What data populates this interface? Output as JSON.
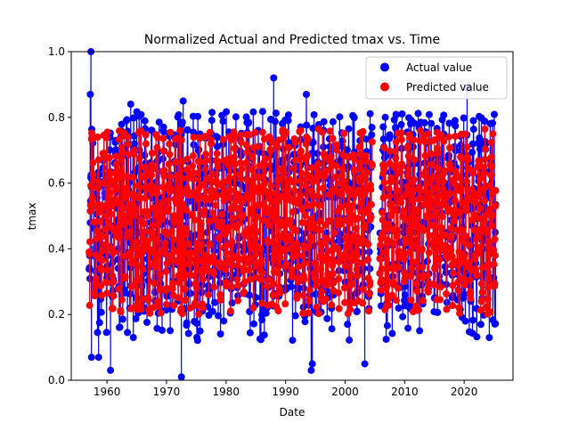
{
  "chart_data": {
    "type": "scatter",
    "title": "Normalized Actual and Predicted tmax vs. Time",
    "xlabel": "Date",
    "ylabel": "tmax",
    "xlim": [
      1954.0,
      2028.2
    ],
    "ylim": [
      0.0,
      1.0
    ],
    "x_ticks": [
      1960,
      1970,
      1980,
      1990,
      2000,
      2010,
      2020
    ],
    "x_tick_labels": [
      "1960",
      "1970",
      "1980",
      "1990",
      "2000",
      "2010",
      "2020"
    ],
    "y_ticks": [
      0.0,
      0.2,
      0.4,
      0.6,
      0.8,
      1.0
    ],
    "y_tick_labels": [
      "0.0",
      "0.2",
      "0.4",
      "0.6",
      "0.8",
      "1.0"
    ],
    "grid": false,
    "legend_position": "top-right",
    "series": [
      {
        "name": "Actual value",
        "color": "#0000ff",
        "marker": "circle",
        "line": true,
        "x_range": [
          1957.0,
          2025.3
        ],
        "typical_range": [
          0.22,
          0.78
        ],
        "extreme_points": [
          {
            "x": 1957.3,
            "y": 1.0
          },
          {
            "x": 1957.2,
            "y": 0.87
          },
          {
            "x": 1957.4,
            "y": 0.07
          },
          {
            "x": 1958.6,
            "y": 0.07
          },
          {
            "x": 1960.6,
            "y": 0.03
          },
          {
            "x": 1964.0,
            "y": 0.84
          },
          {
            "x": 1972.5,
            "y": 0.01
          },
          {
            "x": 1972.8,
            "y": 0.85
          },
          {
            "x": 1988.0,
            "y": 0.92
          },
          {
            "x": 1993.5,
            "y": 0.87
          },
          {
            "x": 1994.3,
            "y": 0.03
          },
          {
            "x": 1994.5,
            "y": 0.05
          },
          {
            "x": 2003.3,
            "y": 0.05
          },
          {
            "x": 2020.5,
            "y": 0.89
          },
          {
            "x": 2020.2,
            "y": 0.18
          },
          {
            "x": 2022.8,
            "y": 0.17
          }
        ]
      },
      {
        "name": "Predicted value",
        "color": "#ff0000",
        "marker": "circle",
        "line": true,
        "x_range": [
          1957.0,
          2025.3
        ],
        "typical_range": [
          0.25,
          0.73
        ]
      }
    ],
    "data_gap": [
      2004.6,
      2005.8
    ]
  }
}
